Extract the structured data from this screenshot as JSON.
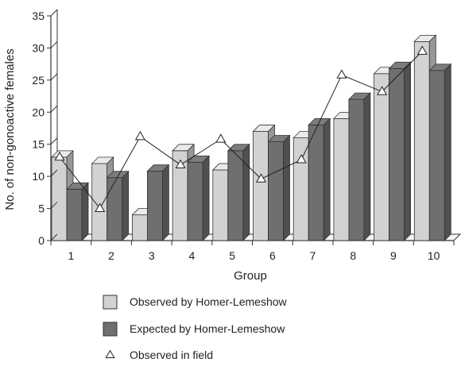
{
  "chart_data": {
    "type": "bar",
    "title": "",
    "xlabel": "Group",
    "ylabel": "No. of non-gonoactive females",
    "ylim": [
      0,
      35
    ],
    "yticks": [
      0,
      5,
      10,
      15,
      20,
      25,
      30,
      35
    ],
    "categories": [
      "1",
      "2",
      "3",
      "4",
      "5",
      "6",
      "7",
      "8",
      "9",
      "10"
    ],
    "grid": false,
    "legend_position": "bottom",
    "series": [
      {
        "name": "Observed by Homer-Lemeshow",
        "type": "bar",
        "color": "#d2d2d2",
        "values": [
          13,
          12,
          4,
          14,
          11,
          17,
          16,
          19,
          26,
          31
        ]
      },
      {
        "name": "Expected by Homer-Lemeshow",
        "type": "bar",
        "color": "#6f6f6f",
        "values": [
          8,
          9.8,
          10.8,
          12.2,
          14,
          15.4,
          18,
          22,
          26.8,
          26.5
        ]
      },
      {
        "name": "Observed in field",
        "type": "line",
        "marker": "triangle-open",
        "values": [
          13,
          5,
          16.2,
          11.8,
          15.8,
          9.6,
          12.6,
          25.8,
          23.2,
          29.5
        ]
      }
    ]
  }
}
